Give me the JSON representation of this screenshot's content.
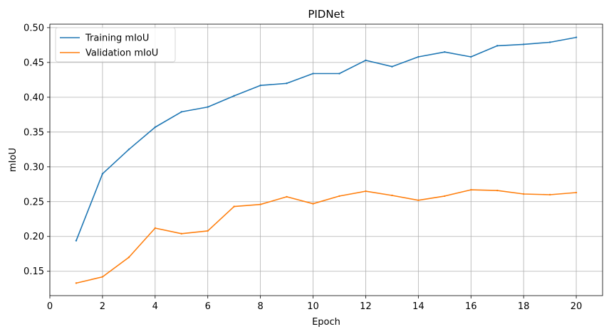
{
  "chart_data": {
    "type": "line",
    "title": "PIDNet",
    "xlabel": "Epoch",
    "ylabel": "mIoU",
    "xlim": [
      0,
      21
    ],
    "ylim": [
      0.115,
      0.505
    ],
    "xticks": [
      0,
      2,
      4,
      6,
      8,
      10,
      12,
      14,
      16,
      18,
      20
    ],
    "yticks": [
      0.15,
      0.2,
      0.25,
      0.3,
      0.35,
      0.4,
      0.45,
      0.5
    ],
    "ytick_labels": [
      "0.15",
      "0.20",
      "0.25",
      "0.30",
      "0.35",
      "0.40",
      "0.45",
      "0.50"
    ],
    "grid": true,
    "legend_position": "top-left",
    "x": [
      1,
      2,
      3,
      4,
      5,
      6,
      7,
      8,
      9,
      10,
      11,
      12,
      13,
      14,
      15,
      16,
      17,
      18,
      19,
      20
    ],
    "series": [
      {
        "name": "Training mIoU",
        "color": "#1f77b4",
        "values": [
          0.194,
          0.29,
          0.325,
          0.357,
          0.379,
          0.386,
          0.402,
          0.417,
          0.42,
          0.434,
          0.434,
          0.453,
          0.444,
          0.458,
          0.465,
          0.458,
          0.474,
          0.476,
          0.479,
          0.486
        ]
      },
      {
        "name": "Validation mIoU",
        "color": "#ff7f0e",
        "values": [
          0.133,
          0.142,
          0.17,
          0.212,
          0.204,
          0.208,
          0.243,
          0.246,
          0.257,
          0.247,
          0.258,
          0.265,
          0.259,
          0.252,
          0.258,
          0.267,
          0.266,
          0.261,
          0.26,
          0.263
        ]
      }
    ]
  }
}
